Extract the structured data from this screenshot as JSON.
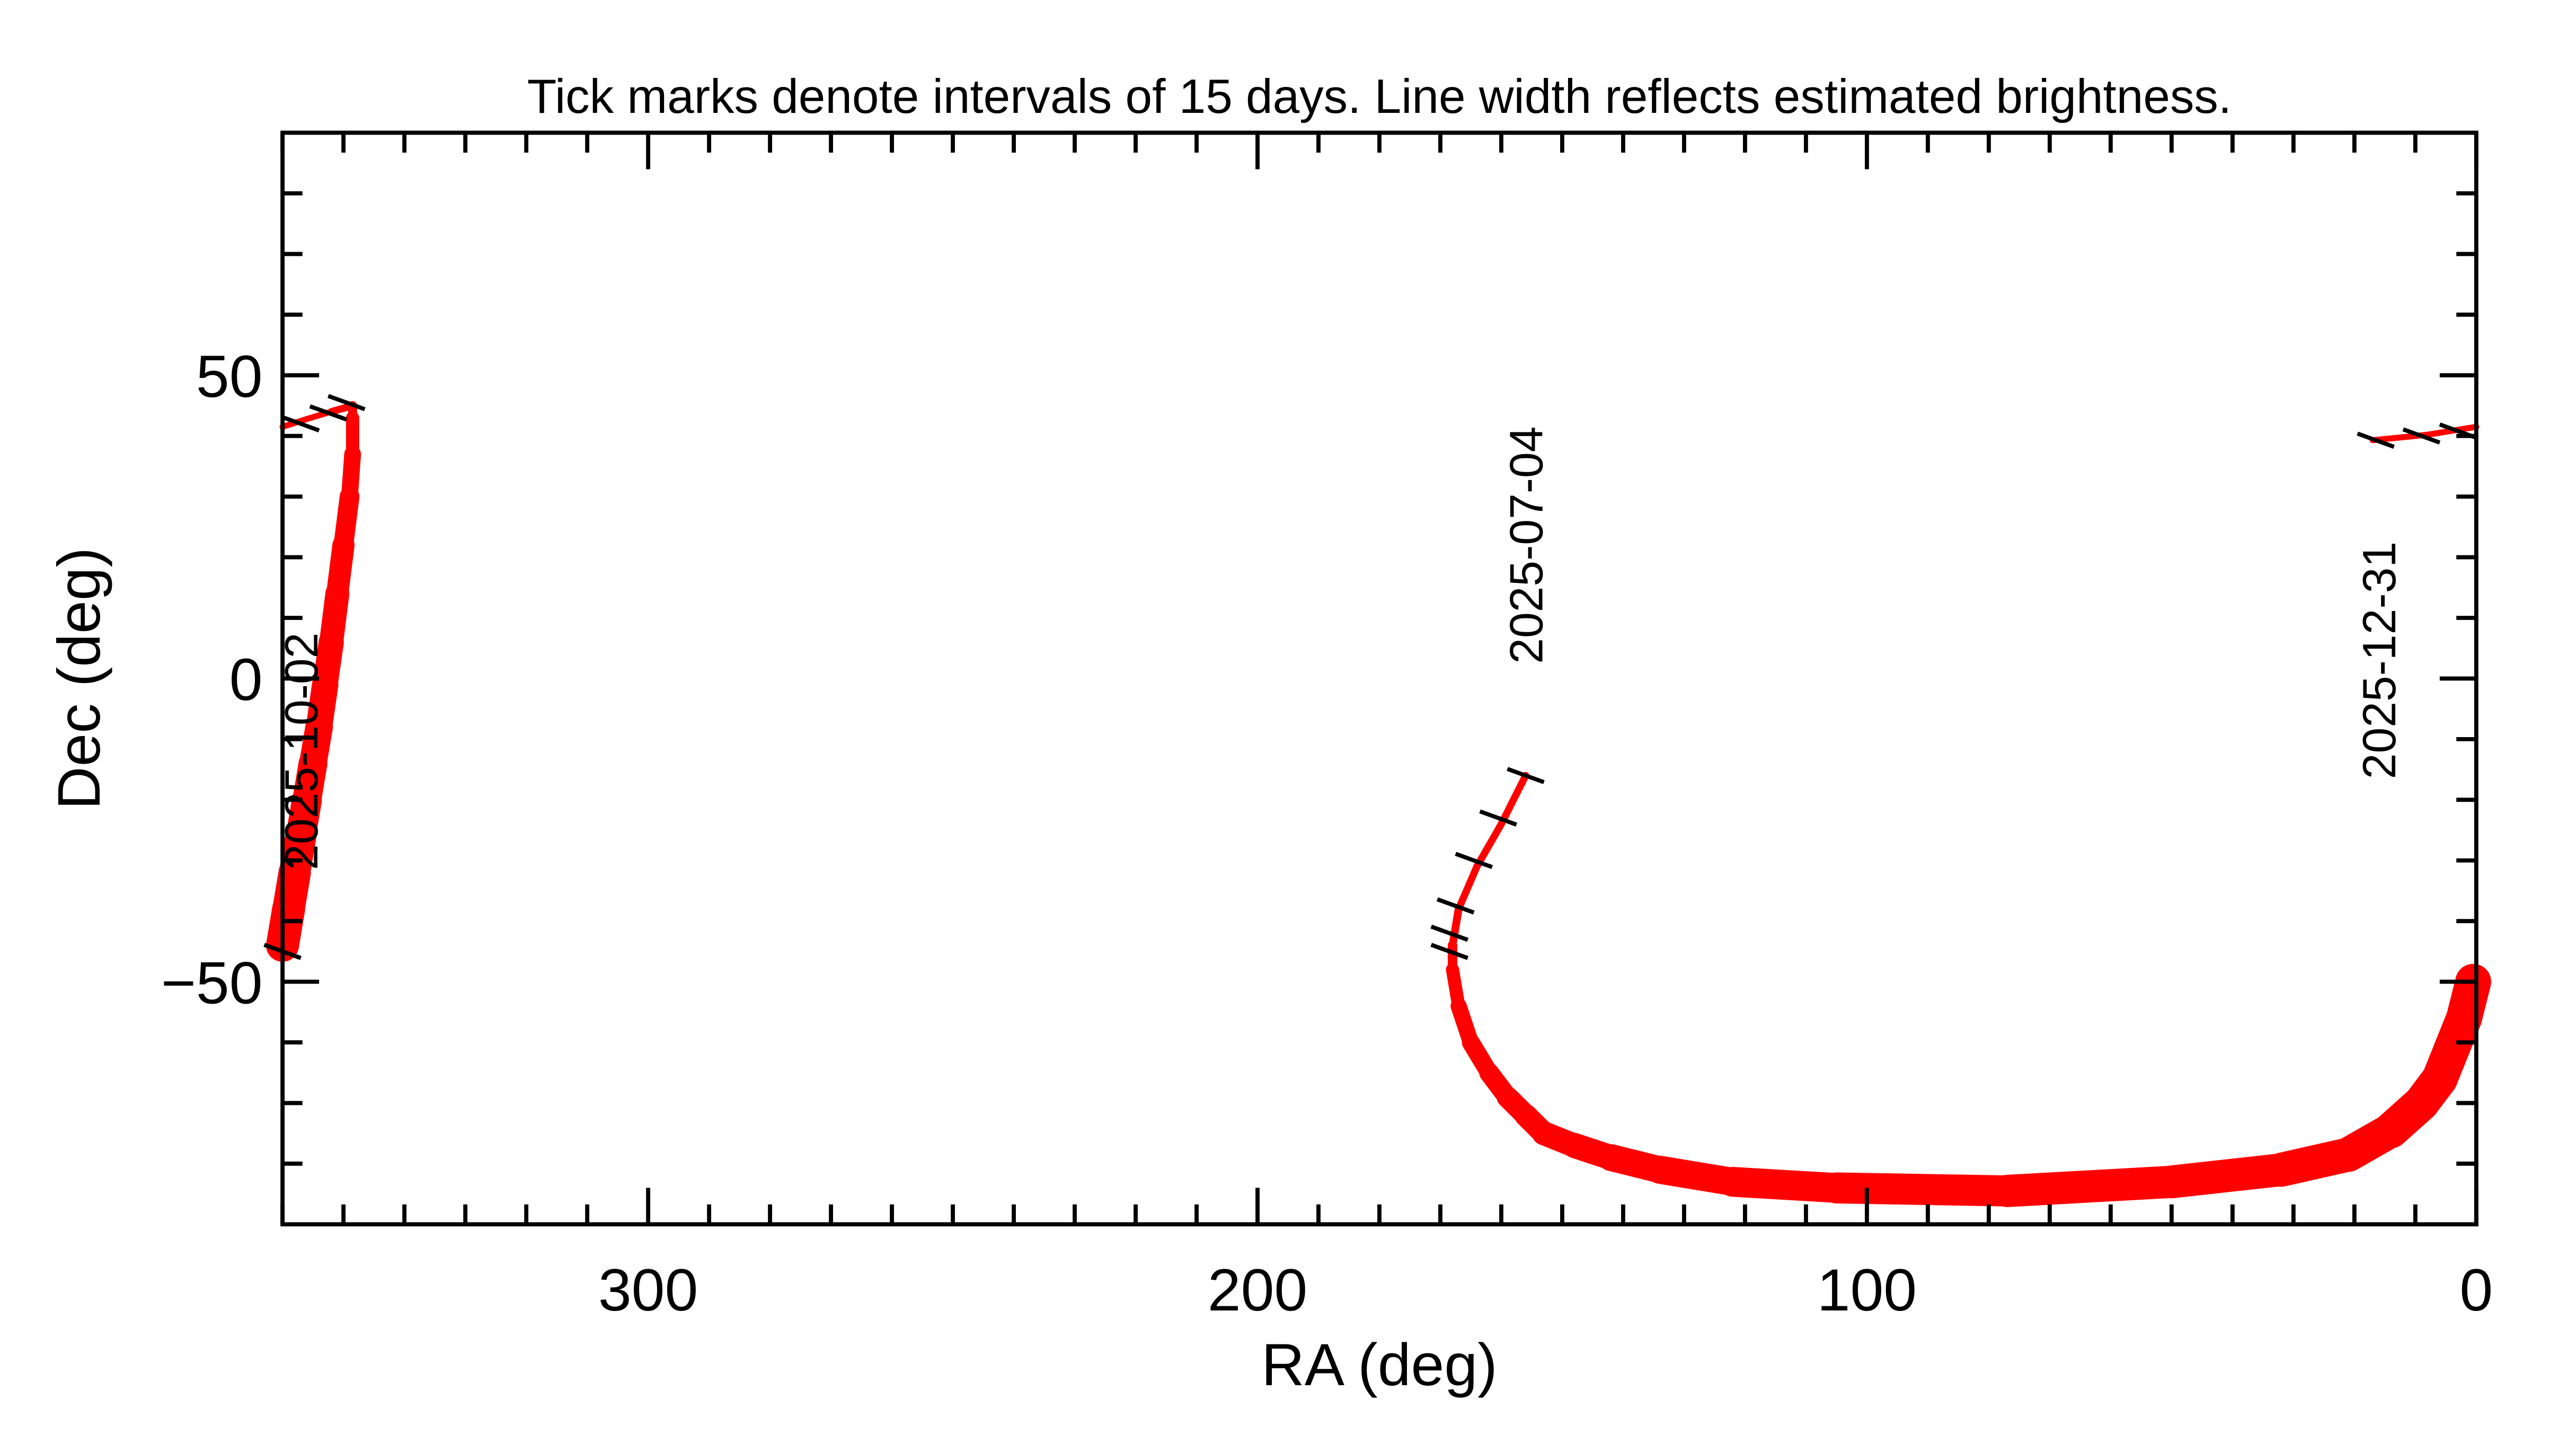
{
  "chart_data": {
    "type": "line",
    "title": "Tick marks denote intervals of 15 days.  Line width reflects estimated brightness.",
    "xlabel": "RA (deg)",
    "ylabel": "Dec (deg)",
    "xlim": [
      360,
      0
    ],
    "ylim": [
      -90,
      90
    ],
    "x_ticks": [
      300,
      200,
      100,
      0
    ],
    "x_tick_labels": [
      "300",
      "200",
      "100",
      "0"
    ],
    "y_ticks": [
      50,
      0,
      -50
    ],
    "y_tick_labels": [
      "50",
      "0",
      "−50"
    ],
    "x_minor_step": 10,
    "y_minor_step": 10,
    "grid": false,
    "line_color": "#ff0000",
    "tick_mark_color": "#000000",
    "series": [
      {
        "points_ra_dec_width": [
          [
            156,
            -16,
            1.2
          ],
          [
            160,
            -24,
            1.2
          ],
          [
            164,
            -31,
            1.2
          ],
          [
            167,
            -38,
            1.2
          ],
          [
            168,
            -44,
            1.3
          ],
          [
            168,
            -48,
            1.6
          ],
          [
            167,
            -54,
            2.2
          ],
          [
            165,
            -60,
            2.7
          ],
          [
            162,
            -65,
            3.0
          ],
          [
            159,
            -69,
            3.3
          ],
          [
            156,
            -72,
            3.6
          ],
          [
            153,
            -75,
            3.8
          ],
          [
            148,
            -77,
            4.0
          ],
          [
            142,
            -79,
            4.2
          ],
          [
            134,
            -81,
            4.5
          ],
          [
            122,
            -83,
            4.7
          ],
          [
            105,
            -84,
            5.0
          ],
          [
            77,
            -84.5,
            5.2
          ],
          [
            50,
            -83,
            5.4
          ],
          [
            32,
            -81,
            5.5
          ],
          [
            21,
            -78.5,
            5.7
          ],
          [
            14,
            -74.5,
            5.8
          ],
          [
            9,
            -70,
            6.0
          ],
          [
            6,
            -66,
            6.0
          ],
          [
            4,
            -61,
            6.0
          ],
          [
            2,
            -56,
            6.0
          ],
          [
            0.5,
            -50,
            5.6
          ]
        ]
      },
      {
        "points_ra_dec_width": [
          [
            360,
            -44,
            5.5
          ],
          [
            359,
            -38,
            5.4
          ],
          [
            358,
            -32,
            5.2
          ],
          [
            357,
            -26,
            5.0
          ],
          [
            356,
            -20,
            4.8
          ],
          [
            355,
            -14,
            4.6
          ],
          [
            354,
            -8,
            4.4
          ],
          [
            353,
            -1,
            4.2
          ],
          [
            352,
            6,
            4.0
          ],
          [
            351,
            14,
            3.7
          ],
          [
            350,
            22,
            3.3
          ],
          [
            349,
            30,
            2.8
          ],
          [
            348.5,
            37,
            2.2
          ],
          [
            348.5,
            43,
            1.5
          ],
          [
            348.5,
            45,
            1.2
          ],
          [
            352,
            44,
            1.0
          ],
          [
            356,
            42.8,
            1.0
          ],
          [
            360,
            41.5,
            1.0
          ]
        ]
      },
      {
        "points_ra_dec_width": [
          [
            0,
            41.5,
            1.0
          ],
          [
            8,
            40.2,
            1.0
          ],
          [
            17,
            39.3,
            1.0
          ]
        ]
      }
    ],
    "interval_ticks_ra_dec": [
      [
        156,
        -16
      ],
      [
        160.5,
        -23
      ],
      [
        164.5,
        -30
      ],
      [
        167.5,
        -37.5
      ],
      [
        168.5,
        -42
      ],
      [
        168.5,
        -45
      ],
      [
        357,
        42
      ],
      [
        352.5,
        43.8
      ],
      [
        349.5,
        45.5
      ],
      [
        360,
        -45
      ],
      [
        3,
        40.8
      ],
      [
        9,
        40
      ],
      [
        16.5,
        39.3
      ]
    ],
    "annotations": [
      {
        "text": "2025-07-04",
        "ra": 156,
        "dec": 22
      },
      {
        "text": "2025-10-02",
        "ra": 357,
        "dec": -12
      },
      {
        "text": "2025-12-31",
        "ra": 16,
        "dec": 3
      }
    ]
  }
}
